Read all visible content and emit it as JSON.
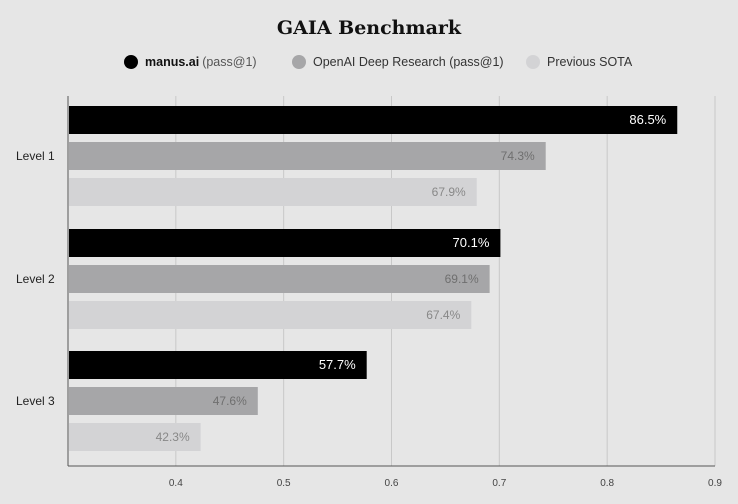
{
  "colors": {
    "background": "#e6e6e6",
    "manus": "#000000",
    "openai": "#a6a6a8",
    "previous": "#d3d3d5",
    "grid": "#c8c8c8",
    "axis": "#555555"
  },
  "legend": [
    {
      "name": "manus.ai",
      "suffix": "(pass@1)",
      "color": "#000000"
    },
    {
      "name": "OpenAI Deep Research (pass@1)",
      "suffix": "",
      "color": "#a6a6a8"
    },
    {
      "name": "Previous SOTA",
      "suffix": "",
      "color": "#d3d3d5"
    }
  ],
  "chart_data": {
    "type": "bar",
    "orientation": "horizontal",
    "title": "GAIA Benchmark",
    "categories": [
      "Level 1",
      "Level 2",
      "Level 3"
    ],
    "xlim": [
      0.3,
      0.9
    ],
    "xticks": [
      "0.4",
      "0.5",
      "0.6",
      "0.7",
      "0.8",
      "0.9"
    ],
    "xtick_values": [
      0.4,
      0.5,
      0.6,
      0.7,
      0.8,
      0.9
    ],
    "grid": true,
    "legend_position": "top",
    "series": [
      {
        "name": "manus.ai (pass@1)",
        "values": [
          0.865,
          0.701,
          0.577
        ],
        "labels": [
          "86.5%",
          "70.1%",
          "57.7%"
        ],
        "label_color": "#ffffff"
      },
      {
        "name": "OpenAI Deep Research (pass@1)",
        "values": [
          0.743,
          0.691,
          0.476
        ],
        "labels": [
          "74.3%",
          "69.1%",
          "47.6%"
        ],
        "label_color": "#6f6f6f"
      },
      {
        "name": "Previous SOTA",
        "values": [
          0.679,
          0.674,
          0.423
        ],
        "labels": [
          "67.9%",
          "67.4%",
          "42.3%"
        ],
        "label_color": "#888888"
      }
    ]
  }
}
